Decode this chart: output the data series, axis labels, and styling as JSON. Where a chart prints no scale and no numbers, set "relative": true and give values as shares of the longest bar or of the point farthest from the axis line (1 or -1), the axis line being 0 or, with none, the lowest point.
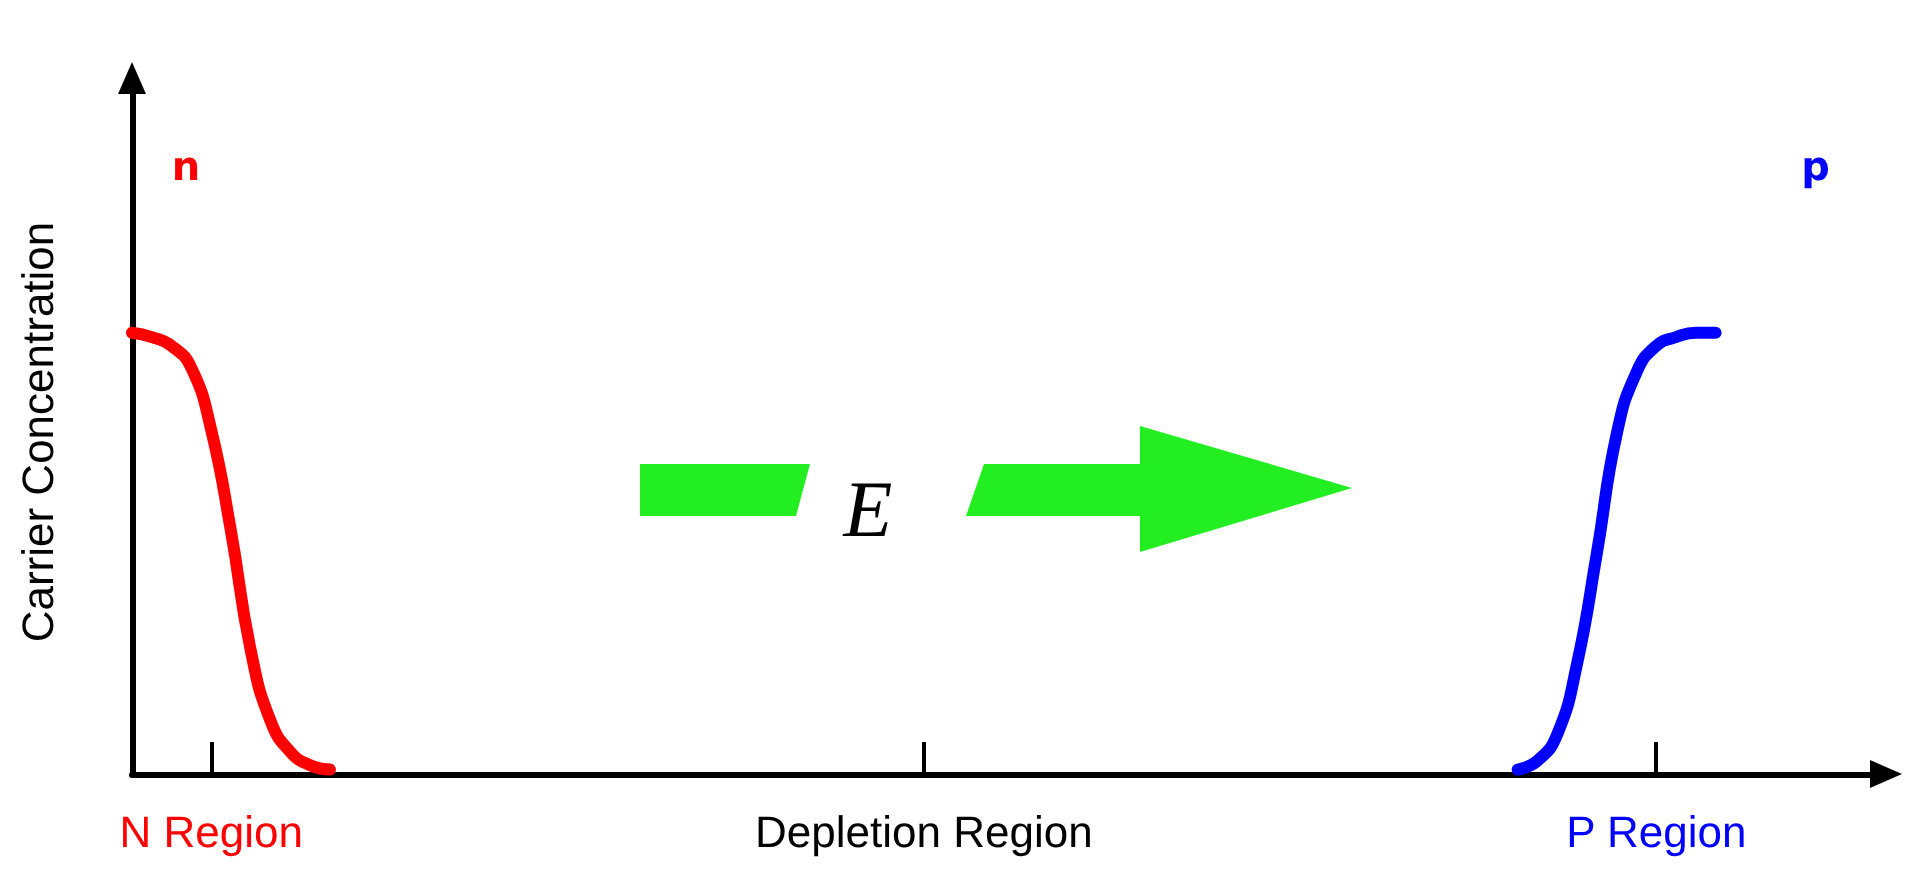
{
  "chart_data": {
    "type": "line",
    "ylabel": "Carrier Concentration",
    "relative": true,
    "categories": [
      null,
      null,
      null,
      null,
      "N Region",
      null,
      null,
      null,
      null,
      null,
      null,
      null,
      null,
      null,
      null,
      null,
      null,
      null,
      null,
      null,
      null,
      null,
      null,
      null,
      null,
      null,
      null,
      null,
      null,
      null,
      null,
      null,
      null,
      null,
      null,
      null,
      null,
      null,
      null,
      null,
      "Depletion Region",
      null,
      null,
      null,
      null,
      null,
      null,
      null,
      null,
      null,
      null,
      null,
      null,
      null,
      null,
      null,
      null,
      null,
      null,
      null,
      null,
      null,
      null,
      null,
      null,
      null,
      null,
      null,
      null,
      null,
      null,
      null,
      null,
      null,
      null,
      null,
      null,
      "P Region",
      null,
      null,
      null,
      null,
      null,
      null,
      null,
      null,
      null,
      null,
      null
    ],
    "series": [
      {
        "name": "n",
        "color": "#ff0000",
        "values": [
          1.0,
          0.99,
          0.97,
          0.92,
          0.78,
          0.55,
          0.28,
          0.12,
          0.05,
          0.02,
          0.01,
          null,
          null,
          null,
          null,
          null,
          null,
          null,
          null,
          null,
          null,
          null,
          null,
          null,
          null,
          null,
          null,
          null,
          null,
          null,
          null,
          null,
          null,
          null,
          null,
          null,
          null,
          null,
          null,
          null,
          null,
          null,
          null,
          null,
          null,
          null,
          null,
          null,
          null,
          null,
          null,
          null,
          null,
          null,
          null,
          null,
          null,
          null,
          null,
          null,
          null,
          null,
          null,
          null,
          null,
          null,
          null,
          null,
          null,
          null,
          null,
          null,
          null,
          null,
          null,
          null,
          null,
          null,
          null,
          null,
          null,
          null,
          null,
          null,
          null,
          null,
          null,
          null,
          null
        ]
      },
      {
        "name": "p",
        "color": "#0000ff",
        "values": [
          null,
          null,
          null,
          null,
          null,
          null,
          null,
          null,
          null,
          null,
          null,
          null,
          null,
          null,
          null,
          null,
          null,
          null,
          null,
          null,
          null,
          null,
          null,
          null,
          null,
          null,
          null,
          null,
          null,
          null,
          null,
          null,
          null,
          null,
          null,
          null,
          null,
          null,
          null,
          null,
          null,
          null,
          null,
          null,
          null,
          null,
          null,
          null,
          null,
          null,
          null,
          null,
          null,
          null,
          null,
          null,
          null,
          null,
          null,
          null,
          null,
          null,
          null,
          null,
          null,
          null,
          null,
          null,
          null,
          null,
          0.01,
          0.03,
          0.09,
          0.25,
          0.5,
          0.77,
          0.91,
          0.97,
          0.99,
          1.0,
          1.0,
          null,
          null,
          null,
          null,
          null,
          null,
          null,
          null
        ]
      }
    ],
    "annotations": [
      "E"
    ],
    "marker": "none",
    "line_style": "solid",
    "grid": false,
    "legend": false
  }
}
